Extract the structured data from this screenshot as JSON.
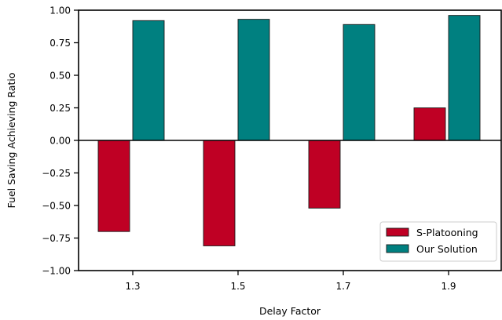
{
  "chart_data": {
    "type": "bar",
    "xlabel": "Delay Factor",
    "ylabel": "Fuel Saving Achieving Ratio",
    "categories": [
      "1.3",
      "1.5",
      "1.7",
      "1.9"
    ],
    "ylim": [
      -1.0,
      1.0
    ],
    "yticks": [
      "−1.00",
      "−0.75",
      "−0.50",
      "−0.25",
      "0.00",
      "0.25",
      "0.50",
      "0.75",
      "1.00"
    ],
    "ytick_values": [
      -1.0,
      -0.75,
      -0.5,
      -0.25,
      0.0,
      0.25,
      0.5,
      0.75,
      1.0
    ],
    "grid": false,
    "legend_position": "bottom-right",
    "series": [
      {
        "name": "S-Platooning",
        "color": "#bf0024",
        "values": [
          -0.7,
          -0.81,
          -0.52,
          0.25
        ]
      },
      {
        "name": "Our Solution",
        "color": "#008080",
        "values": [
          0.92,
          0.93,
          0.89,
          0.96
        ]
      }
    ]
  }
}
